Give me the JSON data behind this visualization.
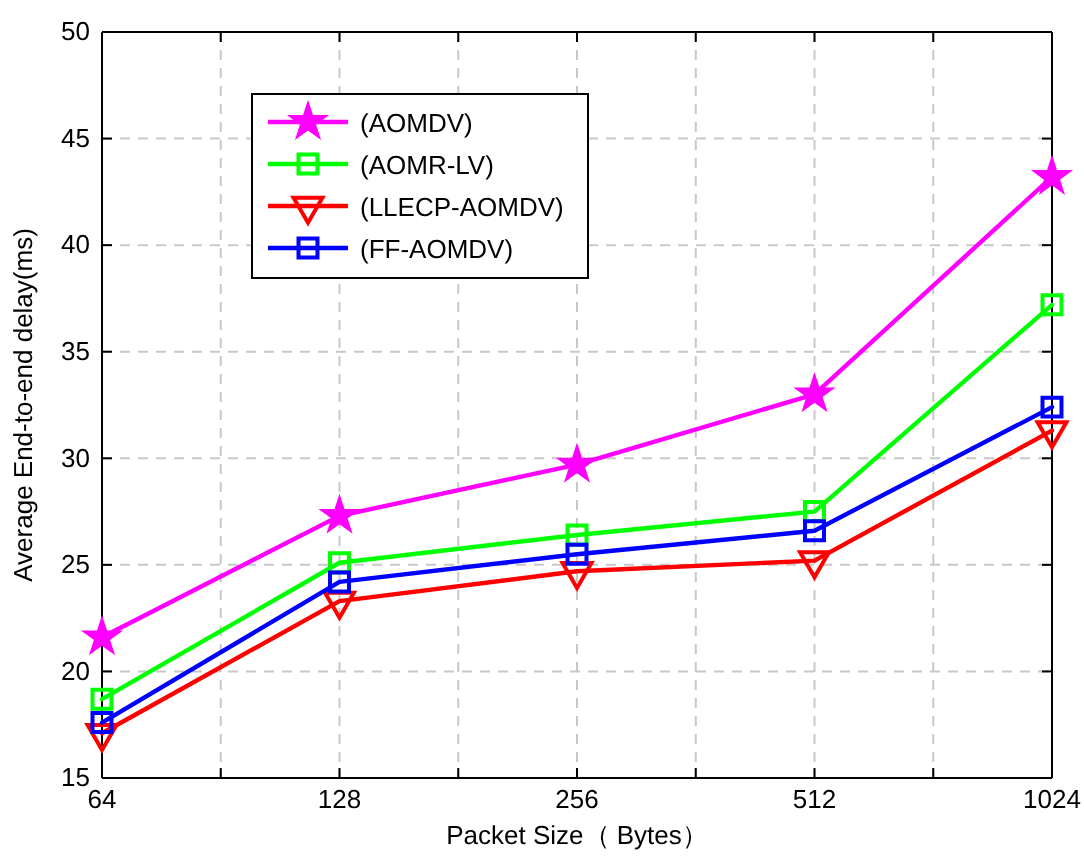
{
  "chart_data": {
    "type": "line",
    "xlabel": "Packet Size（ Bytes）",
    "ylabel": "Average End-to-end delay(ms)",
    "x": [
      64,
      128,
      256,
      512,
      1024
    ],
    "log": "x",
    "xlim": [
      64,
      1024
    ],
    "xticks": [
      64,
      {
        "value": 90.51,
        "label": null
      },
      128,
      {
        "value": 181.02,
        "label": null
      },
      256,
      {
        "value": 362.04,
        "label": null
      },
      512,
      {
        "value": 724.08,
        "label": null
      },
      1024
    ],
    "ylim": [
      15,
      50
    ],
    "yticks": [
      15,
      20,
      25,
      30,
      35,
      40,
      45,
      50
    ],
    "grid": true,
    "legend": "top left",
    "line_style": "solid",
    "series": [
      {
        "name": "(AOMDV)",
        "color": "#ff00ff",
        "marker": "star",
        "values": [
          21.6,
          27.3,
          29.7,
          33.0,
          43.2
        ]
      },
      {
        "name": "(AOMR-LV)",
        "color": "#00ff00",
        "marker": "square",
        "values": [
          18.7,
          25.1,
          26.4,
          27.5,
          37.2
        ]
      },
      {
        "name": "(LLECP-AOMDV)",
        "color": "#ff0000",
        "marker": "triangle",
        "values": [
          17.1,
          23.3,
          24.7,
          25.2,
          31.3
        ]
      },
      {
        "name": "(FF-AOMDV)",
        "color": "#0000ff",
        "marker": "square",
        "values": [
          17.6,
          24.2,
          25.5,
          26.6,
          32.4
        ]
      }
    ]
  }
}
